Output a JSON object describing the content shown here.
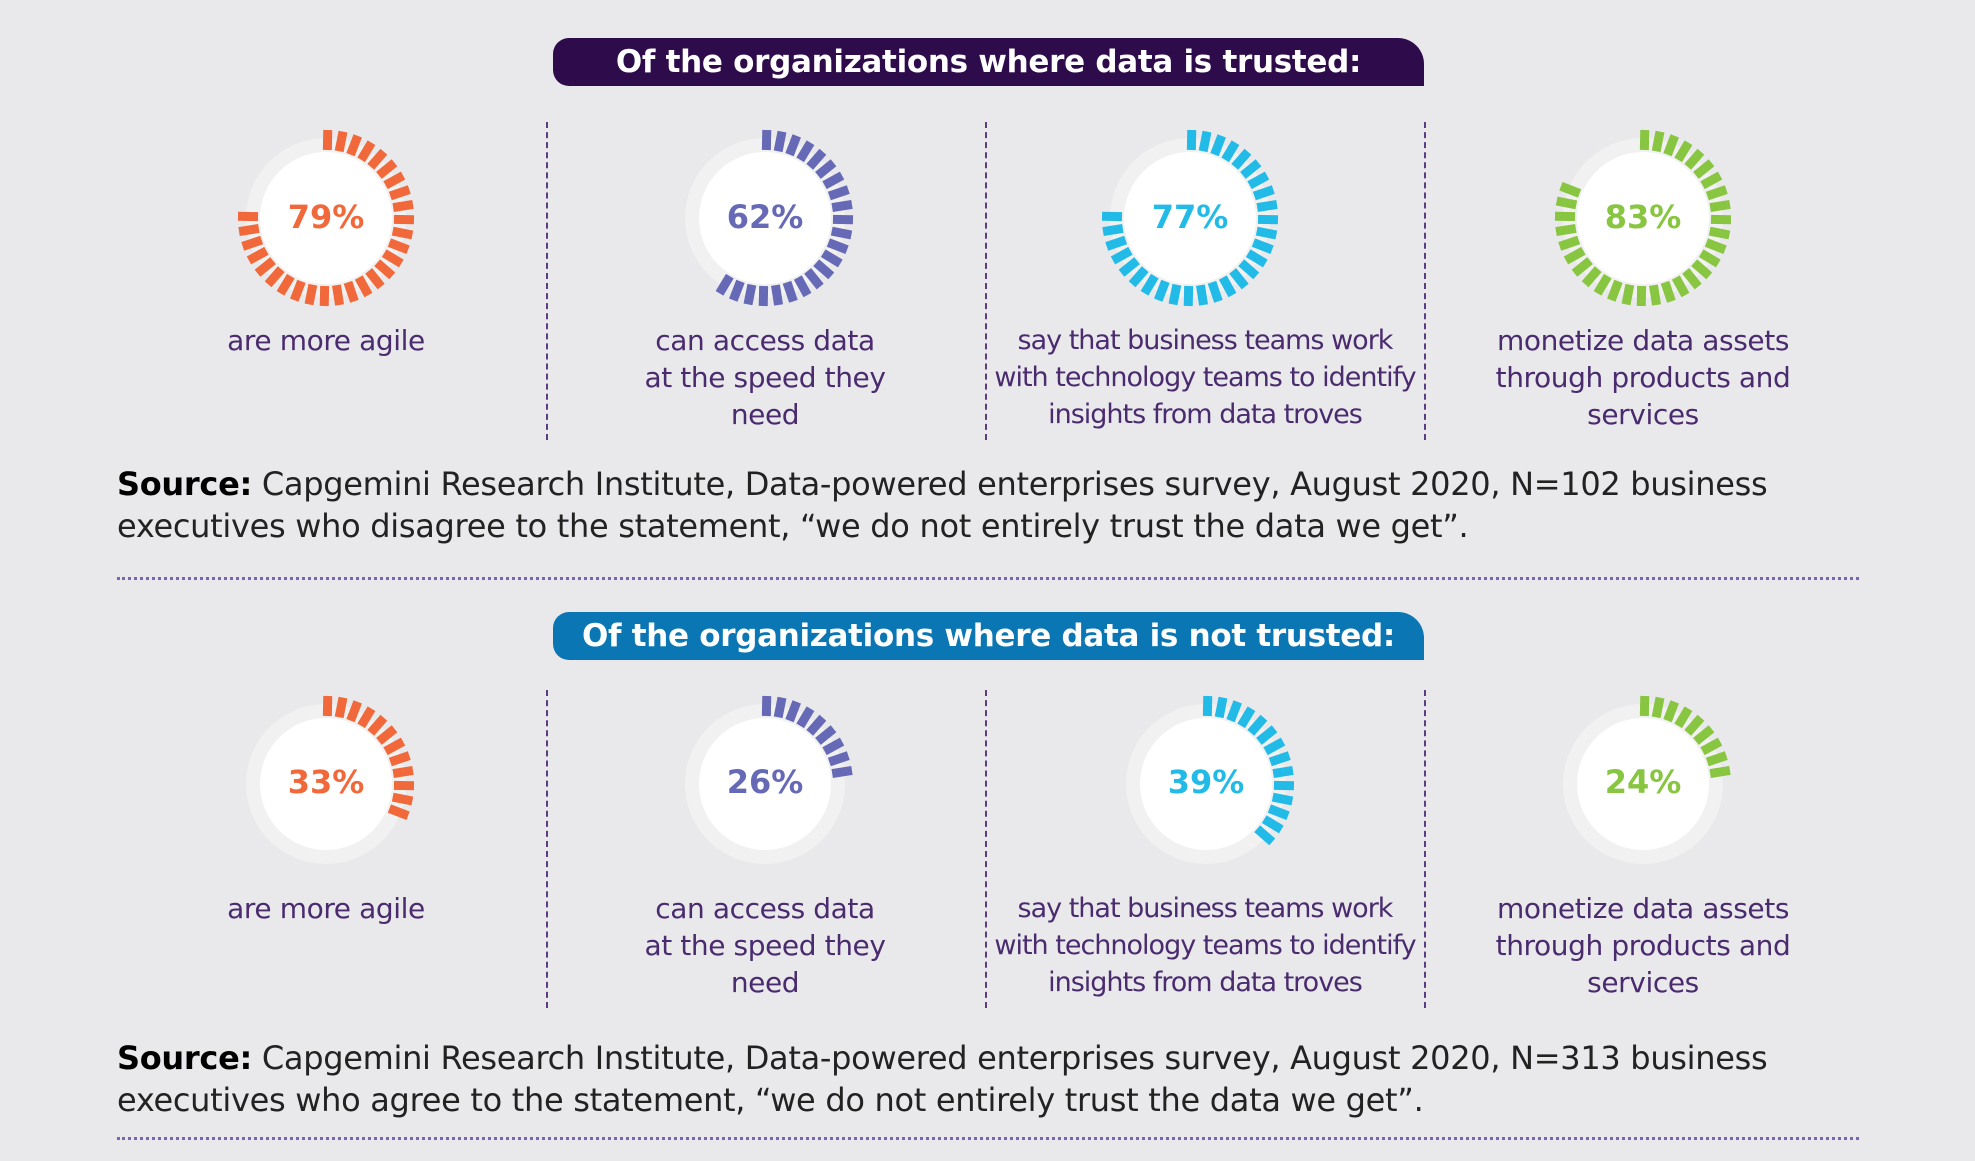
{
  "chart_data": [
    {
      "type": "donut",
      "title": "Of the organizations where data is trusted:",
      "banner_color": "#2e0b4a",
      "items": [
        {
          "value": 79,
          "label": "79%",
          "caption": "are more agile",
          "color": "#f1693a"
        },
        {
          "value": 62,
          "label": "62%",
          "caption": "can access data at the speed they need",
          "color": "#6669b6"
        },
        {
          "value": 77,
          "label": "77%",
          "caption": "say that business teams work with technology teams to identify insights from data troves",
          "color": "#22bbe8"
        },
        {
          "value": 83,
          "label": "83%",
          "caption": "monetize data assets through products and services",
          "color": "#88c540"
        }
      ],
      "source_label": "Source:",
      "source_text": "Capgemini Research Institute, Data-powered enterprises survey, August 2020, N=102 business executives who disagree to the statement, “we do not entirely trust the data we get”."
    },
    {
      "type": "donut",
      "title": "Of the organizations where data is not trusted:",
      "banner_color": "#0a76b4",
      "items": [
        {
          "value": 33,
          "label": "33%",
          "caption": "are more agile",
          "color": "#f1693a"
        },
        {
          "value": 26,
          "label": "26%",
          "caption": "can access data at the speed they need",
          "color": "#6669b6"
        },
        {
          "value": 39,
          "label": "39%",
          "caption": "say that business teams work with technology teams to identify insights from data troves",
          "color": "#22bbe8"
        },
        {
          "value": 24,
          "label": "24%",
          "caption": "monetize data assets through products and services",
          "color": "#88c540"
        }
      ],
      "source_label": "Source:",
      "source_text": "Capgemini Research Institute, Data-powered enterprises survey, August 2020, N=313 business executives who agree to the statement, “we do not entirely trust the data we get”."
    }
  ]
}
